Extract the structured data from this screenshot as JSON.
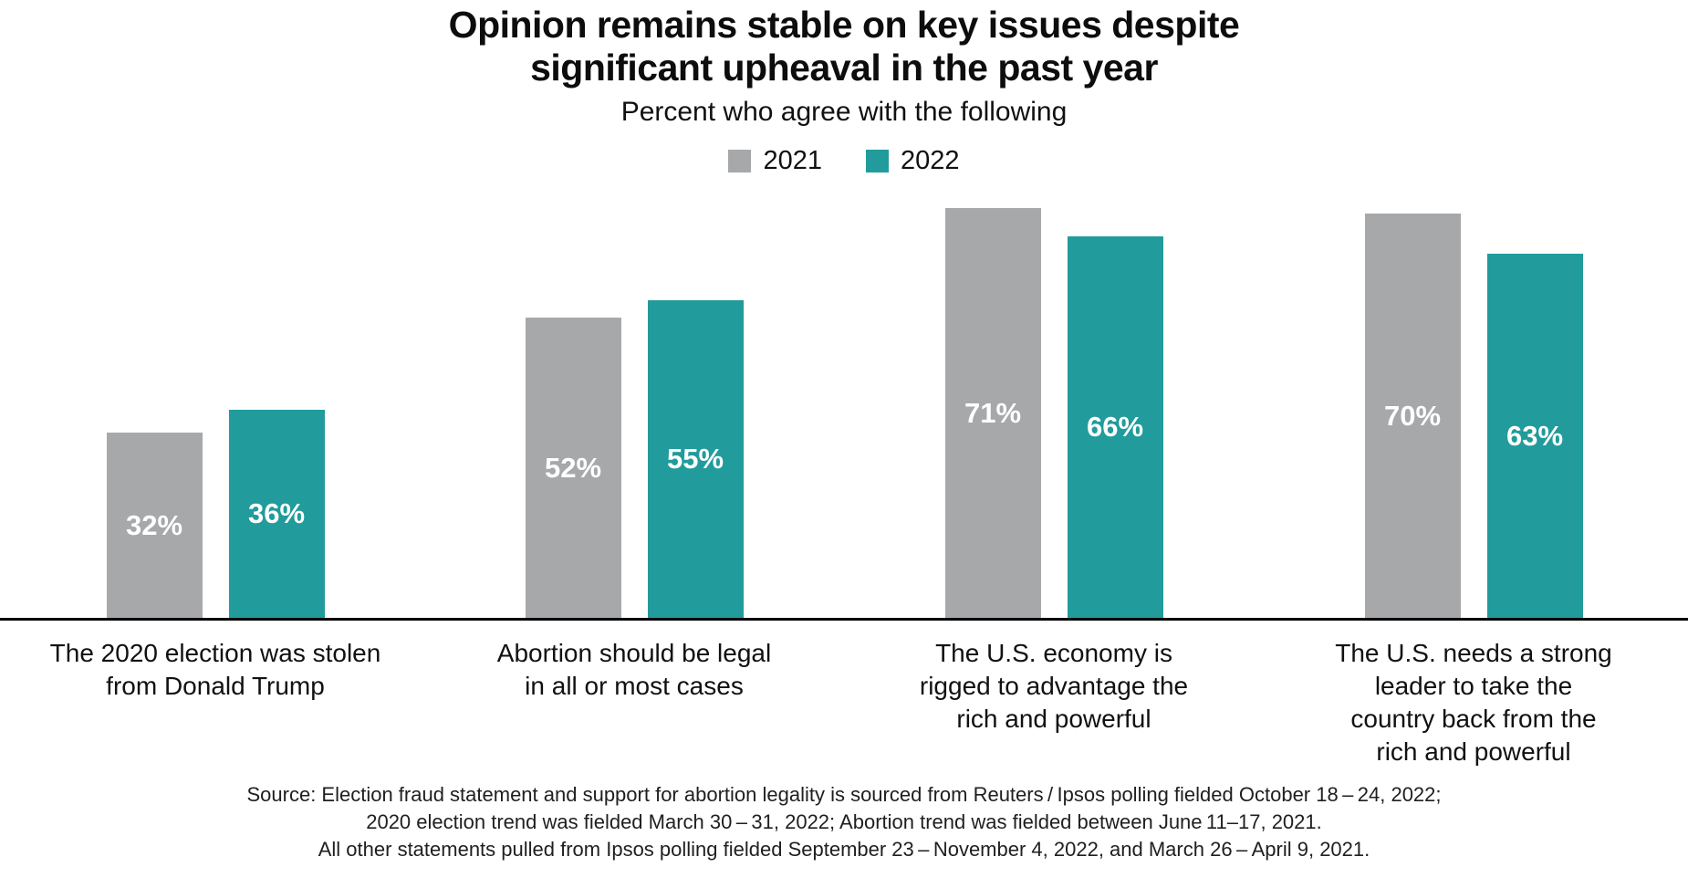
{
  "title": {
    "line1": "Opinion remains stable on key issues despite",
    "line2": "significant upheaval in the past year"
  },
  "subtitle": "Percent who agree with the following",
  "legend": [
    {
      "label": "2021",
      "color": "#a7a8aa"
    },
    {
      "label": "2022",
      "color": "#219b9b"
    }
  ],
  "colors": {
    "gray_2021": "#a7a8aa",
    "teal_2022": "#219b9b",
    "axis": "#000000",
    "value_label": "#ffffff",
    "text": "#111111"
  },
  "chart_data": {
    "type": "bar",
    "title": "Opinion remains stable on key issues despite significant upheaval in the past year",
    "subtitle": "Percent who agree with the following",
    "unit": "%",
    "ylim": [
      0,
      100
    ],
    "grid": false,
    "legend_position": "top-center",
    "value_labels": "inside-center-white",
    "categories": [
      "The 2020 election was stolen from Donald Trump",
      "Abortion should be legal in all or most cases",
      "The U.S. economy is rigged to advantage the rich and powerful",
      "The U.S. needs a strong leader to take the country back from the rich and powerful"
    ],
    "category_lines": [
      [
        "The 2020 election was stolen",
        "from Donald Trump"
      ],
      [
        "Abortion should be legal",
        "in all or most cases"
      ],
      [
        "The U.S. economy is",
        "rigged to advantage the",
        "rich and powerful"
      ],
      [
        "The U.S. needs a strong",
        "leader to take the",
        "country back from the",
        "rich and powerful"
      ]
    ],
    "series": [
      {
        "name": "2021",
        "color": "#a7a8aa",
        "values": [
          32,
          52,
          71,
          70
        ]
      },
      {
        "name": "2022",
        "color": "#219b9b",
        "values": [
          36,
          55,
          66,
          63
        ]
      }
    ],
    "value_suffix": "%"
  },
  "source": {
    "line1": "Source: Election fraud statement and support for abortion legality is sourced from Reuters / Ipsos polling fielded October 18 – 24, 2022;",
    "line2": "2020 election trend was fielded March 30 – 31, 2022; Abortion trend was fielded between June 11–17, 2021.",
    "line3": "All other statements pulled from Ipsos polling fielded September 23 – November 4, 2022, and March 26 – April 9, 2021."
  }
}
